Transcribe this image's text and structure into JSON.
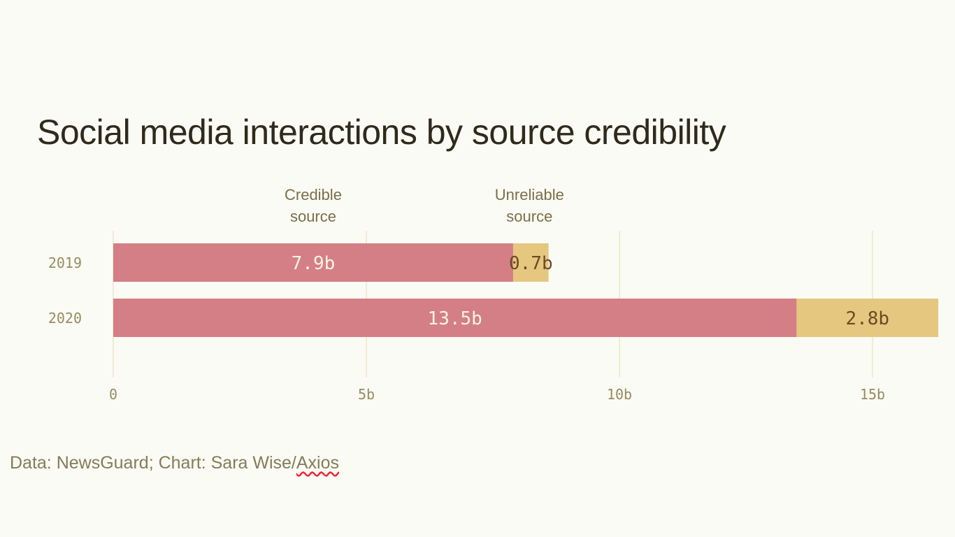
{
  "title": "Social media interactions by source credibility",
  "source": {
    "prefix": "Data: NewsGuard; Chart: Sara Wise/",
    "link": "Axios"
  },
  "chart_data": {
    "type": "bar",
    "orientation": "horizontal",
    "stacked": true,
    "title": "Social media interactions by source credibility",
    "categories": [
      "2019",
      "2020"
    ],
    "series": [
      {
        "name": "Credible source",
        "values": [
          7.9,
          13.5
        ],
        "labels": [
          "7.9b",
          "13.5b"
        ],
        "color": "#d47f86",
        "label_color": "#fbf3e0"
      },
      {
        "name": "Unreliable source",
        "values": [
          0.7,
          2.8
        ],
        "labels": [
          "0.7b",
          "2.8b"
        ],
        "color": "#e5c77f",
        "label_color": "#6b4a25"
      }
    ],
    "xlim": [
      0,
      16.3
    ],
    "xticks": [
      0,
      5,
      10,
      15
    ],
    "xtick_labels": [
      "0",
      "5b",
      "10b",
      "15b"
    ],
    "grid": true,
    "legend": "top, direct labels above 2019 bar",
    "colors": {
      "grid": "#ece8c4",
      "tick_text": "#978b60",
      "legend_text": "#7a6f47"
    }
  }
}
